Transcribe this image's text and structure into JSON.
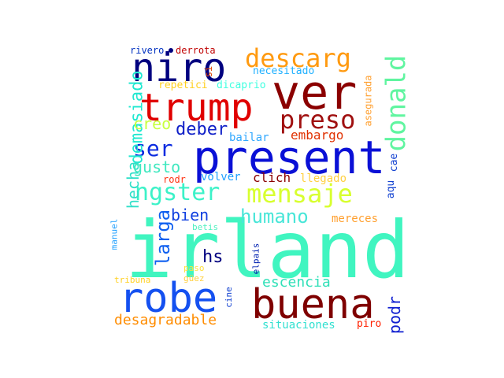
{
  "wordcloud": {
    "words": [
      {
        "text": "irland",
        "color": "#40f5c0"
      },
      {
        "text": "present",
        "color": "#0a10d6"
      },
      {
        "text": "ver",
        "color": "#8b0000"
      },
      {
        "text": "niro",
        "color": "#00007f"
      },
      {
        "text": "trump",
        "color": "#e00000"
      },
      {
        "text": "robe",
        "color": "#1450f0"
      },
      {
        "text": "buena",
        "color": "#7f0000"
      },
      {
        "text": "descarg",
        "color": "#ff9a10"
      },
      {
        "text": "preso",
        "color": "#a01010"
      },
      {
        "text": "donald",
        "color": "#60f5a0"
      },
      {
        "text": "mensaje",
        "color": "#d8ff30"
      },
      {
        "text": "ngster",
        "color": "#3cf2c8"
      },
      {
        "text": "humano",
        "color": "#48e6d8"
      },
      {
        "text": "ser",
        "color": "#0a2ae0"
      },
      {
        "text": "demasiado",
        "color": "#20e8d0"
      },
      {
        "text": "hecha",
        "color": "#30e0c8"
      },
      {
        "text": "larga",
        "color": "#1060f0"
      },
      {
        "text": "creo",
        "color": "#c8ff40"
      },
      {
        "text": "deber",
        "color": "#1020c8"
      },
      {
        "text": "gusto",
        "color": "#40e8c0"
      },
      {
        "text": "bien",
        "color": "#1040e0"
      },
      {
        "text": "hs",
        "color": "#00007f"
      },
      {
        "text": "escencia",
        "color": "#30e0b8"
      },
      {
        "text": "desagradable",
        "color": "#ff8c00"
      },
      {
        "text": "situaciones",
        "color": "#30e0d0"
      },
      {
        "text": "podr",
        "color": "#1020d0"
      },
      {
        "text": "embargo",
        "color": "#e03000"
      },
      {
        "text": "bailar",
        "color": "#30a8ff"
      },
      {
        "text": "volver",
        "color": "#20a0ff"
      },
      {
        "text": "clich",
        "color": "#8b0000"
      },
      {
        "text": "llegado",
        "color": "#ffd040"
      },
      {
        "text": "mereces",
        "color": "#ffa030"
      },
      {
        "text": "repetici",
        "color": "#ffd020"
      },
      {
        "text": "dicaprio",
        "color": "#40ffe0"
      },
      {
        "text": "necesitado",
        "color": "#20b0ff"
      },
      {
        "text": "rivero",
        "color": "#0030c0"
      },
      {
        "text": "derrota",
        "color": "#c00000"
      },
      {
        "text": "si",
        "color": "#e04000"
      },
      {
        "text": "asegurada",
        "color": "#ffa030"
      },
      {
        "text": "aqu",
        "color": "#1040d0"
      },
      {
        "text": "cae",
        "color": "#1040d0"
      },
      {
        "text": "rodr",
        "color": "#ff3010"
      },
      {
        "text": "betis",
        "color": "#50f0c0"
      },
      {
        "text": "manuel",
        "color": "#20a0ff"
      },
      {
        "text": "tribuna",
        "color": "#ffd020"
      },
      {
        "text": "paso",
        "color": "#ffe040"
      },
      {
        "text": "güez",
        "color": "#ffd040"
      },
      {
        "text": "cine",
        "color": "#1040d0"
      },
      {
        "text": "elpais",
        "color": "#0020b0"
      },
      {
        "text": "piro",
        "color": "#ff2000"
      }
    ]
  }
}
